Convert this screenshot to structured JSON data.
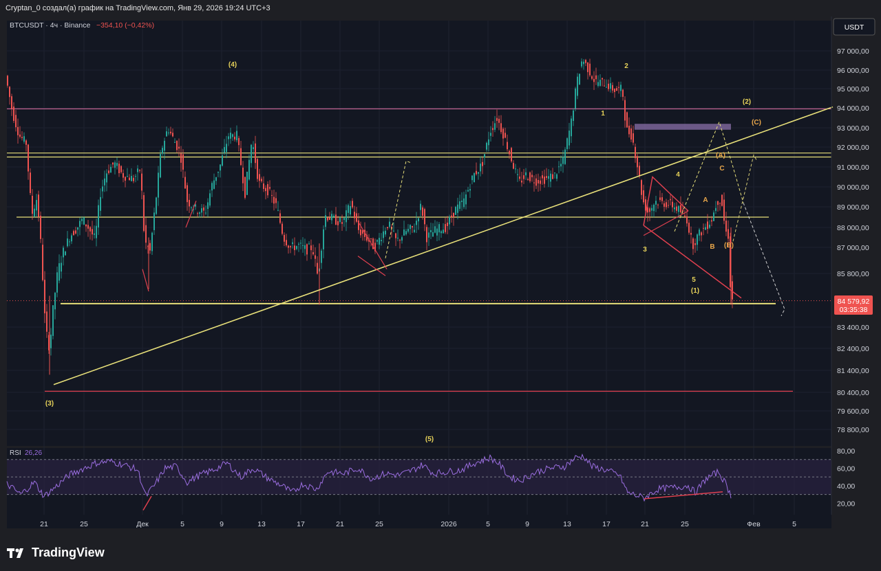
{
  "header": {
    "title": "Cryptan_0 создал(а) график на TradingView.com, Янв 29, 2026 19:24 UTC+3"
  },
  "symbol": {
    "name": "BTCUSDT · 4ч · Binance",
    "change": "−354,10 (−0,42%)",
    "currency": "USDT"
  },
  "price_badge": {
    "price": "84 579,92",
    "countdown": "03:35:38"
  },
  "rsi": {
    "label": "RSI",
    "value": "26,26"
  },
  "colors": {
    "up": "#26a69a",
    "down": "#ef5350",
    "yellow": "#e8e07a",
    "magenta": "#d06a9a",
    "red_line": "#e0404f",
    "rsi": "#9b6ee0"
  },
  "brand": "TradingView",
  "chart_data": {
    "type": "candlestick",
    "interval": "4h",
    "y_axis_ticks": [
      97000,
      96000,
      95000,
      94000,
      93000,
      92000,
      91000,
      90000,
      89000,
      88000,
      87000,
      85800,
      83400,
      82400,
      81400,
      80400,
      79600,
      78800
    ],
    "y_axis_tick_labels": [
      "97 000,00",
      "96 000,00",
      "95 000,00",
      "94 000,00",
      "93 000,00",
      "92 000,00",
      "91 000,00",
      "90 000,00",
      "89 000,00",
      "88 000,00",
      "87 000,00",
      "85 800,00",
      "83 400,00",
      "82 400,00",
      "81 400,00",
      "80 400,00",
      "79 600,00",
      "78 800,00"
    ],
    "x_axis_ticks": [
      "21",
      "25",
      "Дек",
      "5",
      "9",
      "13",
      "17",
      "21",
      "25",
      "2026",
      "5",
      "9",
      "13",
      "17",
      "21",
      "25",
      "Фев",
      "5"
    ],
    "last_price": 84579.92,
    "horizontal_levels": [
      {
        "price": 93950,
        "color": "magenta"
      },
      {
        "price": 91700,
        "color": "yellow"
      },
      {
        "price": 91500,
        "color": "yellow"
      },
      {
        "price": 88500,
        "color": "yellow"
      },
      {
        "price": 84450,
        "color": "yellow"
      },
      {
        "price": 80450,
        "color": "red"
      }
    ],
    "wave_labels": [
      "(4)",
      "2",
      "1",
      "(2)",
      "(C)",
      "(A)",
      "4",
      "C",
      "A",
      "B",
      "3",
      "5",
      "(1)",
      "(B)",
      "(3)",
      "(5)"
    ],
    "rsi_ticks": [
      80,
      60,
      40,
      20
    ],
    "rsi_tick_labels": [
      "80,00",
      "60,00",
      "40,00",
      "20,00"
    ],
    "rsi_last": 26.26
  }
}
